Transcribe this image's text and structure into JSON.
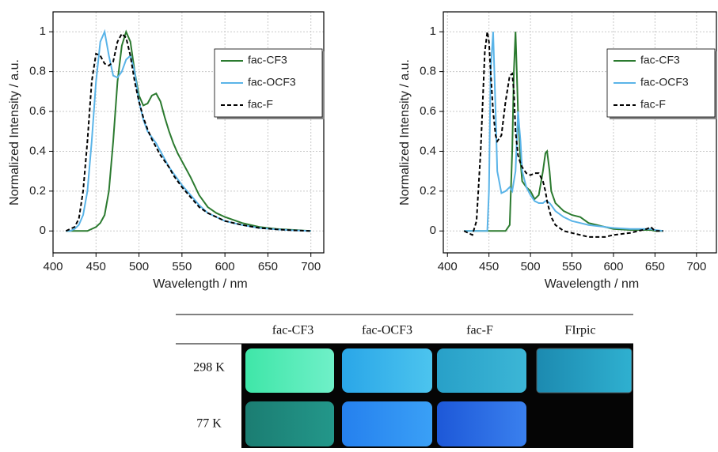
{
  "chart_data": [
    {
      "type": "line",
      "xlabel": "Wavelength / nm",
      "ylabel": "Normalized Intensity / a.u.",
      "x": [
        415,
        420,
        425,
        430,
        435,
        440,
        445,
        450,
        455,
        460,
        465,
        470,
        475,
        480,
        485,
        490,
        495,
        500,
        505,
        510,
        515,
        520,
        525,
        530,
        535,
        540,
        545,
        550,
        560,
        570,
        580,
        590,
        600,
        620,
        640,
        660,
        680,
        700
      ],
      "series": [
        {
          "name": "fac-CF3",
          "color": "#2b7a2f",
          "dashed": false,
          "values": [
            0,
            0,
            0,
            0,
            0,
            0,
            0.01,
            0.02,
            0.04,
            0.08,
            0.2,
            0.45,
            0.75,
            0.93,
            1.0,
            0.95,
            0.8,
            0.68,
            0.63,
            0.64,
            0.68,
            0.69,
            0.65,
            0.57,
            0.5,
            0.44,
            0.39,
            0.35,
            0.27,
            0.18,
            0.12,
            0.09,
            0.07,
            0.04,
            0.02,
            0.01,
            0.005,
            0
          ]
        },
        {
          "name": "fac-OCF3",
          "color": "#5ab4e8",
          "dashed": false,
          "values": [
            0,
            0,
            0.01,
            0.03,
            0.08,
            0.2,
            0.45,
            0.75,
            0.95,
            1.0,
            0.88,
            0.78,
            0.77,
            0.8,
            0.86,
            0.88,
            0.8,
            0.65,
            0.56,
            0.5,
            0.47,
            0.44,
            0.4,
            0.36,
            0.32,
            0.29,
            0.26,
            0.23,
            0.18,
            0.13,
            0.09,
            0.07,
            0.05,
            0.03,
            0.015,
            0.008,
            0.003,
            0
          ]
        },
        {
          "name": "fac-F",
          "color": "#000000",
          "dashed": true,
          "values": [
            0,
            0.01,
            0.02,
            0.06,
            0.2,
            0.45,
            0.75,
            0.89,
            0.88,
            0.84,
            0.83,
            0.85,
            0.95,
            0.99,
            0.97,
            0.88,
            0.75,
            0.65,
            0.57,
            0.51,
            0.46,
            0.42,
            0.38,
            0.35,
            0.32,
            0.28,
            0.25,
            0.22,
            0.17,
            0.12,
            0.09,
            0.07,
            0.05,
            0.03,
            0.015,
            0.008,
            0.003,
            0
          ]
        }
      ],
      "xlim": [
        400,
        715
      ],
      "ylim": [
        -0.11,
        1.1
      ],
      "xticks": [
        400,
        450,
        500,
        550,
        600,
        650,
        700
      ],
      "yticks": [
        0,
        0.2,
        0.4,
        0.6,
        0.8,
        1
      ],
      "grid": true,
      "legend": "upper right"
    },
    {
      "type": "line",
      "xlabel": "Wavelength / nm",
      "ylabel": "Normalized Intensity / a.u.",
      "x": [
        420,
        430,
        435,
        440,
        445,
        448,
        450,
        452,
        455,
        458,
        460,
        465,
        470,
        475,
        478,
        480,
        482,
        485,
        488,
        490,
        495,
        500,
        505,
        510,
        515,
        518,
        520,
        523,
        525,
        530,
        540,
        550,
        560,
        570,
        580,
        590,
        600,
        620,
        640,
        645,
        650,
        660
      ],
      "series": [
        {
          "name": "fac-CF3",
          "color": "#2b7a2f",
          "dashed": false,
          "values": [
            0,
            0,
            0,
            0,
            0,
            0,
            0,
            0,
            0,
            0,
            0,
            0,
            0,
            0.03,
            0.4,
            0.8,
            1.0,
            0.6,
            0.35,
            0.25,
            0.22,
            0.2,
            0.16,
            0.18,
            0.3,
            0.39,
            0.4,
            0.3,
            0.2,
            0.14,
            0.1,
            0.08,
            0.07,
            0.04,
            0.03,
            0.02,
            0.01,
            0.005,
            0.005,
            0.005,
            0,
            0
          ]
        },
        {
          "name": "fac-OCF3",
          "color": "#5ab4e8",
          "dashed": false,
          "values": [
            0,
            0,
            0,
            0,
            0,
            0,
            0.2,
            0.8,
            1.0,
            0.6,
            0.3,
            0.19,
            0.2,
            0.22,
            0.2,
            0.25,
            0.3,
            0.6,
            0.45,
            0.3,
            0.22,
            0.18,
            0.15,
            0.14,
            0.14,
            0.15,
            0.15,
            0.14,
            0.13,
            0.1,
            0.07,
            0.05,
            0.04,
            0.03,
            0.025,
            0.02,
            0.015,
            0.01,
            0.01,
            0.01,
            0.005,
            0
          ]
        },
        {
          "name": "fac-F",
          "color": "#000000",
          "dashed": true,
          "values": [
            0,
            -0.02,
            0.05,
            0.4,
            0.9,
            1.0,
            0.95,
            0.8,
            0.6,
            0.48,
            0.45,
            0.48,
            0.65,
            0.78,
            0.79,
            0.7,
            0.5,
            0.38,
            0.34,
            0.32,
            0.29,
            0.28,
            0.29,
            0.29,
            0.25,
            0.2,
            0.15,
            0.1,
            0.07,
            0.03,
            0,
            -0.01,
            -0.02,
            -0.03,
            -0.03,
            -0.03,
            -0.02,
            -0.01,
            0.01,
            0.02,
            0,
            0
          ]
        }
      ],
      "xlim": [
        395,
        724
      ],
      "ylim": [
        -0.11,
        1.1
      ],
      "xticks": [
        400,
        450,
        500,
        550,
        600,
        650,
        700
      ],
      "yticks": [
        0,
        0.2,
        0.4,
        0.6,
        0.8,
        1
      ],
      "grid": true,
      "legend": "upper right"
    }
  ],
  "table": {
    "columns": [
      "fac-CF3",
      "fac-OCF3",
      "fac-F",
      "FIrpic"
    ],
    "rows": [
      "298 K",
      "77 K"
    ]
  }
}
